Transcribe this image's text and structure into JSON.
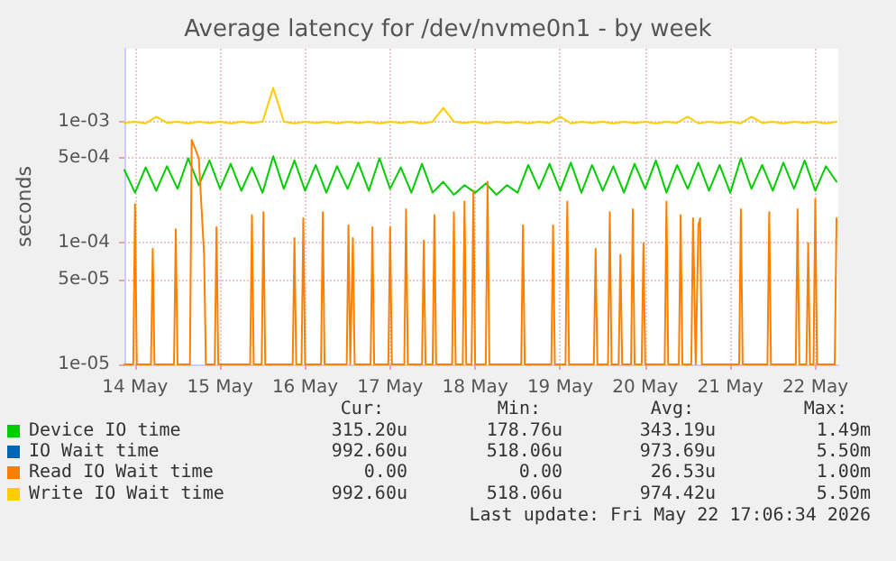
{
  "chart_data": {
    "type": "line",
    "title": "Average latency for /dev/nvme0n1 - by week",
    "ylabel": "seconds",
    "log": "y",
    "grid": true,
    "legend": "bottom",
    "marker": "none",
    "line_style": "solid",
    "xlim": [
      "2026-05-14T09:00",
      "2026-05-22T18:30"
    ],
    "xticks": [
      {
        "value": "2026-05-14T12:00",
        "label": "14 May"
      },
      {
        "value": "2026-05-15T12:00",
        "label": "15 May"
      },
      {
        "value": "2026-05-16T12:00",
        "label": "16 May"
      },
      {
        "value": "2026-05-17T12:00",
        "label": "17 May"
      },
      {
        "value": "2026-05-18T12:00",
        "label": "18 May"
      },
      {
        "value": "2026-05-19T12:00",
        "label": "19 May"
      },
      {
        "value": "2026-05-20T12:00",
        "label": "20 May"
      },
      {
        "value": "2026-05-21T12:00",
        "label": "21 May"
      },
      {
        "value": "2026-05-22T12:00",
        "label": "22 May"
      }
    ],
    "ylim": [
      1e-05,
      0.004
    ],
    "yticks": [
      {
        "value": 1e-05,
        "label": "1e-05"
      },
      {
        "value": 5e-05,
        "label": "5e-05"
      },
      {
        "value": 0.0001,
        "label": "1e-04"
      },
      {
        "value": 0.0005,
        "label": "5e-04"
      },
      {
        "value": 0.001,
        "label": "1e-03"
      }
    ],
    "x": [
      "2026-05-14T09:00",
      "2026-05-14T12:00",
      "2026-05-14T15:00",
      "2026-05-14T18:00",
      "2026-05-14T21:00",
      "2026-05-15T00:00",
      "2026-05-15T03:00",
      "2026-05-15T06:00",
      "2026-05-15T09:00",
      "2026-05-15T12:00",
      "2026-05-15T15:00",
      "2026-05-15T18:00",
      "2026-05-15T21:00",
      "2026-05-16T00:00",
      "2026-05-16T03:00",
      "2026-05-16T06:00",
      "2026-05-16T09:00",
      "2026-05-16T12:00",
      "2026-05-16T15:00",
      "2026-05-16T18:00",
      "2026-05-16T21:00",
      "2026-05-17T00:00",
      "2026-05-17T03:00",
      "2026-05-17T06:00",
      "2026-05-17T09:00",
      "2026-05-17T12:00",
      "2026-05-17T15:00",
      "2026-05-17T18:00",
      "2026-05-17T21:00",
      "2026-05-18T00:00",
      "2026-05-18T03:00",
      "2026-05-18T06:00",
      "2026-05-18T09:00",
      "2026-05-18T12:00",
      "2026-05-18T15:00",
      "2026-05-18T18:00",
      "2026-05-18T21:00",
      "2026-05-19T00:00",
      "2026-05-19T03:00",
      "2026-05-19T06:00",
      "2026-05-19T09:00",
      "2026-05-19T12:00",
      "2026-05-19T15:00",
      "2026-05-19T18:00",
      "2026-05-19T21:00",
      "2026-05-20T00:00",
      "2026-05-20T03:00",
      "2026-05-20T06:00",
      "2026-05-20T09:00",
      "2026-05-20T12:00",
      "2026-05-20T15:00",
      "2026-05-20T18:00",
      "2026-05-20T21:00",
      "2026-05-21T00:00",
      "2026-05-21T03:00",
      "2026-05-21T06:00",
      "2026-05-21T09:00",
      "2026-05-21T12:00",
      "2026-05-21T15:00",
      "2026-05-21T18:00",
      "2026-05-21T21:00",
      "2026-05-22T00:00",
      "2026-05-22T03:00",
      "2026-05-22T06:00",
      "2026-05-22T09:00",
      "2026-05-22T12:00",
      "2026-05-22T15:00",
      "2026-05-22T18:00"
    ],
    "series": [
      {
        "name": "Device IO time",
        "color": "#00cc00",
        "values": [
          0.0004,
          0.00026,
          0.00042,
          0.00027,
          0.00043,
          0.00028,
          0.0005,
          0.0003,
          0.00048,
          0.00028,
          0.00045,
          0.00027,
          0.00042,
          0.00026,
          0.00052,
          0.00028,
          0.00048,
          0.00027,
          0.00044,
          0.00026,
          0.00043,
          0.00028,
          0.00046,
          0.00027,
          0.0005,
          0.00028,
          0.00042,
          0.00026,
          0.00045,
          0.00026,
          0.00032,
          0.00025,
          0.0003,
          0.00026,
          0.00031,
          0.00025,
          0.0003,
          0.00026,
          0.00044,
          0.00028,
          0.00045,
          0.00027,
          0.00046,
          0.00026,
          0.00044,
          0.00027,
          0.00043,
          0.00026,
          0.00045,
          0.00028,
          0.00048,
          0.00026,
          0.00044,
          0.00028,
          0.00046,
          0.00027,
          0.00044,
          0.00026,
          0.0005,
          0.00028,
          0.00044,
          0.00027,
          0.00046,
          0.00028,
          0.00048,
          0.00027,
          0.00043,
          0.00032
        ]
      },
      {
        "name": "IO Wait time",
        "color": "#0066b3",
        "values": [
          null,
          null,
          null,
          null,
          null,
          null,
          null,
          null,
          null,
          null,
          null,
          null,
          null,
          null,
          null,
          null,
          null,
          null,
          null,
          null,
          null,
          null,
          null,
          null,
          null,
          null,
          null,
          null,
          null,
          null,
          null,
          null,
          null,
          null,
          null,
          null,
          null,
          null,
          null,
          null,
          null,
          null,
          null,
          null,
          null,
          null,
          null,
          null,
          null,
          null,
          null,
          null,
          null,
          null,
          null,
          null,
          null,
          null,
          null,
          null,
          null,
          null,
          null,
          null,
          null,
          null,
          null,
          null
        ]
      },
      {
        "name": "Read IO Wait time",
        "color": "#ff8000",
        "x": [
          "2026-05-14T09:00",
          "2026-05-14T11:30",
          "2026-05-14T12:00",
          "2026-05-14T12:30",
          "2026-05-14T16:30",
          "2026-05-14T17:00",
          "2026-05-14T17:30",
          "2026-05-14T23:00",
          "2026-05-14T23:30",
          "2026-05-15T00:00",
          "2026-05-15T03:30",
          "2026-05-15T04:00",
          "2026-05-15T06:00",
          "2026-05-15T07:30",
          "2026-05-15T08:00",
          "2026-05-15T10:30",
          "2026-05-15T11:00",
          "2026-05-15T11:30",
          "2026-05-15T20:30",
          "2026-05-15T21:00",
          "2026-05-15T21:30",
          "2026-05-15T23:45",
          "2026-05-16T00:15",
          "2026-05-16T00:45",
          "2026-05-16T08:30",
          "2026-05-16T09:00",
          "2026-05-16T09:30",
          "2026-05-16T11:00",
          "2026-05-16T11:30",
          "2026-05-16T12:00",
          "2026-05-16T16:30",
          "2026-05-16T17:00",
          "2026-05-16T17:30",
          "2026-05-16T23:45",
          "2026-05-17T00:15",
          "2026-05-17T00:45",
          "2026-05-17T01:00",
          "2026-05-17T01:30",
          "2026-05-17T02:00",
          "2026-05-17T06:30",
          "2026-05-17T07:00",
          "2026-05-17T07:30",
          "2026-05-17T11:30",
          "2026-05-17T12:00",
          "2026-05-17T12:30",
          "2026-05-17T16:00",
          "2026-05-17T16:30",
          "2026-05-17T17:00",
          "2026-05-17T21:00",
          "2026-05-17T21:30",
          "2026-05-17T22:00",
          "2026-05-18T00:00",
          "2026-05-18T00:30",
          "2026-05-18T01:00",
          "2026-05-18T05:30",
          "2026-05-18T06:00",
          "2026-05-18T06:30",
          "2026-05-18T08:30",
          "2026-05-18T09:00",
          "2026-05-18T09:30",
          "2026-05-18T11:00",
          "2026-05-18T11:30",
          "2026-05-18T12:00",
          "2026-05-18T15:00",
          "2026-05-18T15:30",
          "2026-05-18T16:00",
          "2026-05-19T01:00",
          "2026-05-19T01:30",
          "2026-05-19T02:00",
          "2026-05-19T09:30",
          "2026-05-19T10:00",
          "2026-05-19T10:30",
          "2026-05-19T13:30",
          "2026-05-19T14:00",
          "2026-05-19T14:30",
          "2026-05-19T21:30",
          "2026-05-19T22:00",
          "2026-05-19T22:30",
          "2026-05-20T01:30",
          "2026-05-20T02:00",
          "2026-05-20T02:30",
          "2026-05-20T04:30",
          "2026-05-20T05:00",
          "2026-05-20T05:30",
          "2026-05-20T08:00",
          "2026-05-20T08:30",
          "2026-05-20T09:00",
          "2026-05-20T11:00",
          "2026-05-20T11:30",
          "2026-05-20T12:00",
          "2026-05-20T17:30",
          "2026-05-20T18:00",
          "2026-05-20T18:30",
          "2026-05-20T21:30",
          "2026-05-20T22:00",
          "2026-05-20T22:30",
          "2026-05-21T01:00",
          "2026-05-21T01:30",
          "2026-05-21T02:15",
          "2026-05-21T03:00",
          "2026-05-21T03:30",
          "2026-05-21T04:00",
          "2026-05-21T04:30",
          "2026-05-21T14:30",
          "2026-05-21T15:00",
          "2026-05-21T15:30",
          "2026-05-21T22:30",
          "2026-05-21T23:00",
          "2026-05-21T23:30",
          "2026-05-22T06:30",
          "2026-05-22T07:00",
          "2026-05-22T07:30",
          "2026-05-22T09:30",
          "2026-05-22T10:00",
          "2026-05-22T10:30",
          "2026-05-22T11:30",
          "2026-05-22T12:00",
          "2026-05-22T12:30",
          "2026-05-22T17:30",
          "2026-05-22T18:00"
        ],
        "values": [
          1e-05,
          1e-05,
          0.00021,
          1e-05,
          1e-05,
          9e-05,
          1e-05,
          1e-05,
          0.00013,
          1e-05,
          1e-05,
          0.00071,
          0.0005,
          8e-05,
          1e-05,
          1e-05,
          0.000135,
          1e-05,
          1e-05,
          0.00017,
          1e-05,
          1e-05,
          0.00018,
          1e-05,
          1e-05,
          0.00011,
          1e-05,
          1e-05,
          0.00016,
          1e-05,
          1e-05,
          0.00018,
          1e-05,
          1e-05,
          0.00014,
          1e-05,
          1e-05,
          0.00011,
          1e-05,
          1e-05,
          0.000135,
          1e-05,
          1e-05,
          0.000135,
          1e-05,
          1e-05,
          0.00019,
          1e-05,
          1e-05,
          0.000105,
          1e-05,
          1e-05,
          0.00017,
          1e-05,
          1e-05,
          0.00018,
          1e-05,
          1e-05,
          0.00022,
          1e-05,
          1e-05,
          0.00027,
          1e-05,
          1e-05,
          0.00032,
          1e-05,
          1e-05,
          0.00014,
          1e-05,
          1e-05,
          0.00014,
          1e-05,
          1e-05,
          0.00022,
          1e-05,
          1e-05,
          9e-05,
          1e-05,
          1e-05,
          0.00018,
          1e-05,
          1e-05,
          8e-05,
          1e-05,
          1e-05,
          0.00019,
          1e-05,
          1e-05,
          0.0001,
          1e-05,
          1e-05,
          0.00022,
          1e-05,
          1e-05,
          0.00017,
          1e-05,
          1e-05,
          0.00016,
          1e-05,
          0.00014,
          0.00016,
          1e-05,
          1e-05,
          1e-05,
          0.00019,
          1e-05,
          1e-05,
          0.00018,
          1e-05,
          1e-05,
          0.00019,
          1e-05,
          1e-05,
          0.0001,
          1e-05,
          1e-05,
          0.00023,
          1e-05,
          1e-05,
          0.00016
        ]
      },
      {
        "name": "Write IO Wait time",
        "color": "#ffcc00",
        "values": [
          0.00098,
          0.001,
          0.00097,
          0.0011,
          0.00098,
          0.001,
          0.00097,
          0.001,
          0.00098,
          0.001,
          0.00097,
          0.001,
          0.00098,
          0.001,
          0.0019,
          0.001,
          0.00097,
          0.001,
          0.00098,
          0.001,
          0.00097,
          0.001,
          0.00098,
          0.001,
          0.00097,
          0.001,
          0.00098,
          0.001,
          0.00097,
          0.001,
          0.0013,
          0.001,
          0.00098,
          0.001,
          0.00097,
          0.001,
          0.00098,
          0.001,
          0.00097,
          0.001,
          0.00098,
          0.0011,
          0.00097,
          0.001,
          0.00098,
          0.001,
          0.00097,
          0.001,
          0.00098,
          0.001,
          0.00097,
          0.001,
          0.00098,
          0.0011,
          0.00097,
          0.001,
          0.00098,
          0.001,
          0.00097,
          0.0011,
          0.00098,
          0.001,
          0.00097,
          0.001,
          0.00098,
          0.001,
          0.00097,
          0.001
        ]
      }
    ],
    "annotations": [
      "Cur:",
      "Min:",
      "Avg:",
      "Max:",
      "315.20u",
      "178.76u",
      "343.19u",
      "1.49m",
      "992.60u",
      "518.06u",
      "973.69u",
      "5.50m",
      "0.00",
      "0.00",
      "26.53u",
      "1.00m",
      "992.60u",
      "518.06u",
      "974.42u",
      "5.50m",
      "Last update: Fri May 22 17:06:34 2026"
    ]
  }
}
